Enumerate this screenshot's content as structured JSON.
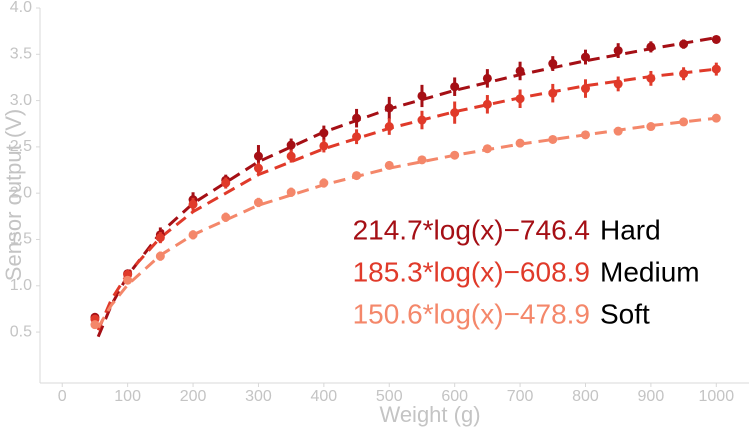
{
  "chart_data": {
    "type": "scatter",
    "xlabel": "Weight (g)",
    "ylabel": "Sensor output (V)",
    "xlim": [
      -34,
      1050
    ],
    "ylim": [
      -0.05,
      4.0
    ],
    "xticks": [
      0,
      100,
      200,
      300,
      400,
      500,
      600,
      700,
      800,
      900,
      1000
    ],
    "yticks": [
      0.5,
      {
        "value": 1,
        "label": "1.0"
      },
      1.5,
      {
        "value": 2,
        "label": "2.0"
      },
      2.5,
      {
        "value": 3,
        "label": "3.0"
      },
      3.5,
      {
        "value": 4,
        "label": "4.0"
      }
    ],
    "x": [
      50,
      100,
      150,
      200,
      250,
      300,
      350,
      400,
      450,
      500,
      550,
      600,
      650,
      700,
      750,
      800,
      850,
      900,
      950,
      1000
    ],
    "fit_x": [
      55,
      75,
      100,
      150,
      200,
      300,
      400,
      500,
      600,
      700,
      800,
      900,
      1000
    ],
    "series": [
      {
        "name": "Hard",
        "color": "#a50f15",
        "equation": "214.7*log(x)−746.4",
        "values": [
          0.66,
          1.13,
          1.55,
          1.93,
          2.14,
          2.4,
          2.52,
          2.65,
          2.81,
          2.92,
          3.05,
          3.15,
          3.24,
          3.32,
          3.4,
          3.47,
          3.54,
          3.58,
          3.61,
          3.66
        ],
        "errors": [
          0.04,
          0.04,
          0.08,
          0.08,
          0.06,
          0.12,
          0.07,
          0.08,
          0.1,
          0.12,
          0.12,
          0.1,
          0.1,
          0.1,
          0.08,
          0.08,
          0.08,
          0.06,
          0.05,
          0.04
        ],
        "fit": [
          0.45,
          0.79,
          1.11,
          1.57,
          1.89,
          2.34,
          2.66,
          2.91,
          3.11,
          3.28,
          3.43,
          3.56,
          3.68
        ]
      },
      {
        "name": "Medium",
        "color": "#e03a2a",
        "equation": "185.3*log(x)−608.9",
        "values": [
          0.64,
          1.12,
          1.52,
          1.88,
          2.11,
          2.27,
          2.4,
          2.51,
          2.61,
          2.72,
          2.79,
          2.87,
          2.96,
          3.02,
          3.08,
          3.13,
          3.18,
          3.24,
          3.29,
          3.34
        ],
        "errors": [
          0.04,
          0.05,
          0.06,
          0.07,
          0.06,
          0.06,
          0.07,
          0.07,
          0.08,
          0.09,
          0.1,
          0.12,
          0.1,
          0.1,
          0.1,
          0.1,
          0.08,
          0.08,
          0.07,
          0.07
        ],
        "fit": [
          0.52,
          0.85,
          1.13,
          1.52,
          1.8,
          2.2,
          2.48,
          2.7,
          2.88,
          3.03,
          3.16,
          3.26,
          3.34
        ]
      },
      {
        "name": "Soft",
        "color": "#f4876a",
        "equation": "150.6*log(x)−478.9",
        "values": [
          0.58,
          1.06,
          1.32,
          1.55,
          1.74,
          1.9,
          2.01,
          2.11,
          2.19,
          2.3,
          2.36,
          2.41,
          2.48,
          2.54,
          2.58,
          2.63,
          2.67,
          2.72,
          2.77,
          2.81
        ],
        "errors": [
          0.03,
          0.04,
          0.05,
          0.05,
          0.05,
          0.05,
          0.05,
          0.05,
          0.04,
          0.04,
          0.04,
          0.04,
          0.03,
          0.03,
          0.03,
          0.03,
          0.03,
          0.03,
          0.03,
          0.03
        ],
        "fit": [
          0.55,
          0.79,
          1.01,
          1.33,
          1.55,
          1.87,
          2.09,
          2.27,
          2.41,
          2.53,
          2.63,
          2.73,
          2.81
        ]
      }
    ]
  }
}
